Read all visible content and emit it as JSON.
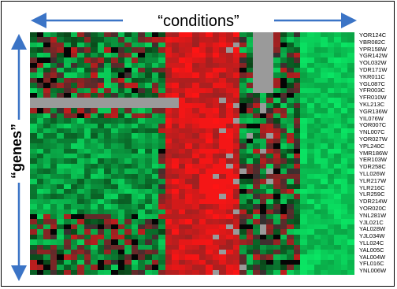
{
  "labels": {
    "conditions": "“conditions”",
    "genes": "“genes”"
  },
  "colors": {
    "arrow": "#3b74c6",
    "high": "#ff3030",
    "low": "#18e060",
    "neutral": "#000000",
    "missing": "#9a9a9a"
  },
  "genes": [
    "YOR124C",
    "YBR082C",
    "YPR158W",
    "YGR142W",
    "YOL032W",
    "YDR171W",
    "YKR011C",
    "YGL087C",
    "YFR003C",
    "YFR010W",
    "YKL213C",
    "YGR136W",
    "YIL076W",
    "YOR007C",
    "YNL007C",
    "YOR027W",
    "YPL240C",
    "YMR186W",
    "YER103W",
    "YDR258C",
    "YLL026W",
    "YLR217W",
    "YLR216C",
    "YLR259C",
    "YDR214W",
    "YOR020C",
    "YNL281W",
    "YJL021C",
    "YAL028W",
    "YJL034W",
    "YLL024C",
    "YAL005C",
    "YAL004W",
    "YFL016C",
    "YNL006W"
  ]
}
